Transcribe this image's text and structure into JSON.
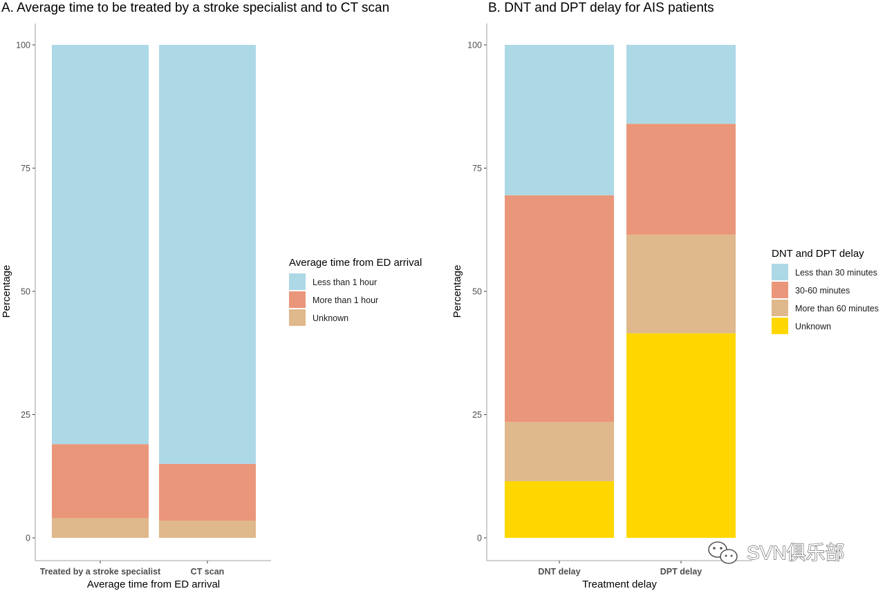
{
  "chart_data": [
    {
      "type": "bar",
      "stacked": true,
      "title": "A. Average time to be treated by a stroke specialist and to CT scan",
      "xlabel": "Average time from ED arrival",
      "ylabel": "Percentage",
      "ylim": [
        0,
        100
      ],
      "yticks": [
        0,
        25,
        50,
        75,
        100
      ],
      "categories": [
        "Treated by a stroke specialist",
        "CT scan"
      ],
      "legend_title": "Average time from ED arrival",
      "legend_position": "right",
      "series": [
        {
          "name": "Unknown",
          "color": "#dfb88b",
          "values": [
            4,
            3.5
          ]
        },
        {
          "name": "More than 1 hour",
          "color": "#ea967a",
          "values": [
            15,
            11.5
          ]
        },
        {
          "name": "Less than 1 hour",
          "color": "#add8e6",
          "values": [
            81,
            85
          ]
        }
      ],
      "legend_order": [
        "Less than 1 hour",
        "More than 1 hour",
        "Unknown"
      ]
    },
    {
      "type": "bar",
      "stacked": true,
      "title": "B. DNT and DPT delay for AIS patients",
      "xlabel": "Treatment delay",
      "ylabel": "Percentage",
      "ylim": [
        0,
        100
      ],
      "yticks": [
        0,
        25,
        50,
        75,
        100
      ],
      "categories": [
        "DNT delay",
        "DPT delay"
      ],
      "legend_title": "DNT and DPT delay",
      "legend_position": "right",
      "series": [
        {
          "name": "Unknown",
          "color": "#ffd700",
          "values": [
            11.5,
            41.5
          ]
        },
        {
          "name": "More than 60 minutes",
          "color": "#dfb88b",
          "values": [
            12,
            20
          ]
        },
        {
          "name": "30-60 minutes",
          "color": "#ea967a",
          "values": [
            46,
            22.5
          ]
        },
        {
          "name": "Less than 30 minutes",
          "color": "#add8e6",
          "values": [
            30.5,
            16
          ]
        }
      ],
      "legend_order": [
        "Less than 30 minutes",
        "30-60 minutes",
        "More than 60 minutes",
        "Unknown"
      ]
    }
  ],
  "watermark": {
    "text": "SVN俱乐部",
    "icon": "wechat-icon"
  }
}
